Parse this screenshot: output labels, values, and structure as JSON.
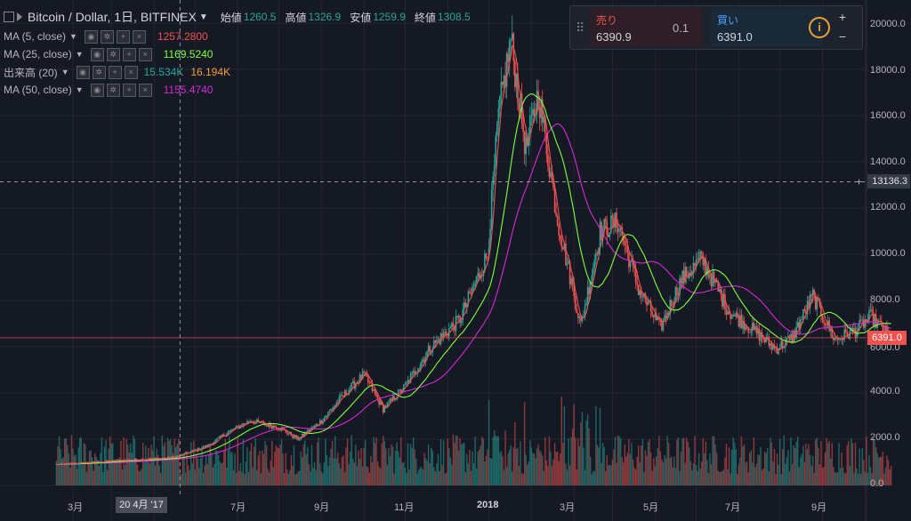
{
  "header": {
    "symbol": "Bitcoin / Dollar, 1日, BITFINEX",
    "ohlc": [
      {
        "label": "始値",
        "value": "1260.5"
      },
      {
        "label": "高値",
        "value": "1326.9"
      },
      {
        "label": "安値",
        "value": "1259.9"
      },
      {
        "label": "終値",
        "value": "1308.5"
      }
    ]
  },
  "indicators": [
    {
      "label": "MA (5, close)",
      "value": "1257.2800",
      "color": "#ef5350"
    },
    {
      "label": "MA (25, close)",
      "value": "1169.5240",
      "color": "#7fff3c"
    },
    {
      "label": "出来高 (20)",
      "value": "15.534K",
      "value2": "16.194K",
      "color": "#26a69a",
      "color2": "#f0a030"
    },
    {
      "label": "MA (50, close)",
      "value": "1155.4740",
      "color": "#d62ad6"
    }
  ],
  "ticker": {
    "sell_label": "売り",
    "sell_price": "6390.9",
    "buy_label": "買い",
    "buy_price": "6391.0",
    "size": "0.1",
    "info": "i",
    "plus": "+",
    "minus": "−",
    "grip": "⠿"
  },
  "y_axis": {
    "labels": [
      "20000.0",
      "18000.0",
      "16000.0",
      "14000.0",
      "12000.0",
      "10000.0",
      "8000.0",
      "6000.0",
      "4000.0",
      "2000.0",
      "0.0"
    ],
    "crosshair_value": "13136.3",
    "last_price": "6391.0"
  },
  "x_axis": {
    "labels": [
      {
        "text": "3月",
        "bold": false
      },
      {
        "text": "7月",
        "bold": false
      },
      {
        "text": "9月",
        "bold": false
      },
      {
        "text": "11月",
        "bold": false
      },
      {
        "text": "2018",
        "bold": true
      },
      {
        "text": "3月",
        "bold": false
      },
      {
        "text": "5月",
        "bold": false
      },
      {
        "text": "7月",
        "bold": false
      },
      {
        "text": "9月",
        "bold": false
      }
    ],
    "crosshair_date": "20 4月 '17"
  },
  "colors": {
    "up": "#26a69a",
    "down": "#ef5350",
    "ma5": "#ef5350",
    "ma25": "#7fff3c",
    "ma50": "#d62ad6",
    "grid": "#232632",
    "bg": "#151924"
  },
  "chart_data": {
    "type": "candlestick",
    "title": "Bitcoin / Dollar, 1日, BITFINEX",
    "ylim": [
      0,
      20000
    ],
    "x_months": [
      "2017-02",
      "2017-03",
      "2017-04",
      "2017-05",
      "2017-06",
      "2017-07",
      "2017-08",
      "2017-09",
      "2017-10",
      "2017-11",
      "2017-12",
      "2018-01",
      "2018-02",
      "2018-03",
      "2018-04",
      "2018-05",
      "2018-06",
      "2018-07",
      "2018-08",
      "2018-09"
    ],
    "close_points": [
      {
        "date": "2017-01-20",
        "value": 900
      },
      {
        "date": "2017-02-15",
        "value": 1000
      },
      {
        "date": "2017-03-15",
        "value": 1100
      },
      {
        "date": "2017-04-15",
        "value": 1200
      },
      {
        "date": "2017-05-10",
        "value": 1700
      },
      {
        "date": "2017-05-25",
        "value": 2300
      },
      {
        "date": "2017-06-10",
        "value": 2800
      },
      {
        "date": "2017-07-01",
        "value": 2500
      },
      {
        "date": "2017-07-15",
        "value": 2000
      },
      {
        "date": "2017-08-01",
        "value": 2800
      },
      {
        "date": "2017-08-20",
        "value": 4100
      },
      {
        "date": "2017-09-01",
        "value": 4800
      },
      {
        "date": "2017-09-15",
        "value": 3300
      },
      {
        "date": "2017-10-01",
        "value": 4300
      },
      {
        "date": "2017-10-20",
        "value": 6000
      },
      {
        "date": "2017-11-10",
        "value": 7200
      },
      {
        "date": "2017-11-30",
        "value": 10000
      },
      {
        "date": "2017-12-08",
        "value": 16000
      },
      {
        "date": "2017-12-17",
        "value": 19300
      },
      {
        "date": "2017-12-28",
        "value": 14500
      },
      {
        "date": "2018-01-06",
        "value": 17000
      },
      {
        "date": "2018-01-20",
        "value": 11500
      },
      {
        "date": "2018-02-06",
        "value": 6900
      },
      {
        "date": "2018-02-20",
        "value": 11000
      },
      {
        "date": "2018-03-05",
        "value": 11400
      },
      {
        "date": "2018-03-20",
        "value": 8500
      },
      {
        "date": "2018-04-05",
        "value": 6800
      },
      {
        "date": "2018-04-20",
        "value": 8900
      },
      {
        "date": "2018-05-05",
        "value": 9800
      },
      {
        "date": "2018-05-25",
        "value": 7500
      },
      {
        "date": "2018-06-10",
        "value": 6800
      },
      {
        "date": "2018-06-28",
        "value": 5900
      },
      {
        "date": "2018-07-10",
        "value": 6400
      },
      {
        "date": "2018-07-25",
        "value": 8200
      },
      {
        "date": "2018-08-10",
        "value": 6300
      },
      {
        "date": "2018-08-25",
        "value": 6700
      },
      {
        "date": "2018-09-05",
        "value": 7300
      },
      {
        "date": "2018-09-20",
        "value": 6391
      }
    ],
    "series": [
      {
        "name": "MA (5, close)",
        "last": 1257.28
      },
      {
        "name": "MA (25, close)",
        "last": 1169.524
      },
      {
        "name": "MA (50, close)",
        "last": 1155.474
      }
    ],
    "volume_ylim": [
      0,
      30000
    ]
  }
}
